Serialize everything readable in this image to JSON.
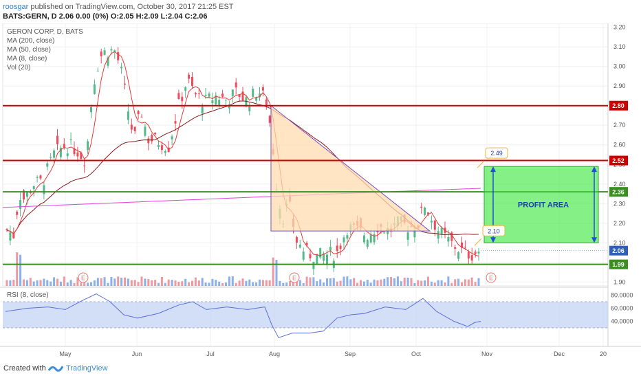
{
  "header": {
    "author": "roosgar",
    "published_text": "published on TradingView.com, October 30, 2017 21:25 EST",
    "symbol_line": "BATS:GERN, D  2.06 0.00 (0%) O:2.05 H:2.09 L:2.04 C:2.06"
  },
  "legend": {
    "title": "GERON CORP, D, BATS",
    "ma200": "MA (200, close)",
    "ma50": "MA (50, close)",
    "ma8": "MA (8, close)",
    "vol": "Vol (20)"
  },
  "rsi_label": "RSI (8, close)",
  "footer": {
    "created": "Created with",
    "brand": "TradingView"
  },
  "colors": {
    "up": "#53b987",
    "down": "#eb4d5c",
    "ma200": "#e040e0",
    "ma50": "#8b1a1a",
    "ma8": "#e53935",
    "level_red": "#cc0000",
    "level_green": "#3a8f20",
    "profit_fill": "#33e633",
    "triangle_fill": "#ffdcb0",
    "triangle_line": "#7a50c0",
    "rsi_band": "#c8d6f5",
    "rsi_line": "#5b6ed8",
    "arrow": "#1f4fd6"
  },
  "chart_data": {
    "type": "candlestick",
    "price_axis_ticks": [
      "3.20",
      "3.10",
      "3.00",
      "2.90",
      "2.80",
      "2.70",
      "2.60",
      "2.50",
      "2.40",
      "2.30",
      "2.20",
      "2.10",
      "2.00",
      "1.90"
    ],
    "ylim": [
      1.88,
      3.22
    ],
    "time_labels": [
      "May",
      "Jun",
      "Jul",
      "Aug",
      "Sep",
      "Oct",
      "Nov",
      "Dec",
      "20"
    ],
    "levels": [
      {
        "value": 2.8,
        "label": "2.80",
        "color": "red"
      },
      {
        "value": 2.52,
        "label": "2.52",
        "color": "red"
      },
      {
        "value": 2.36,
        "label": "2.36",
        "color": "green"
      },
      {
        "value": 1.99,
        "label": "1.99",
        "color": "green"
      }
    ],
    "last_price": {
      "value": 2.06,
      "label": "2.06"
    },
    "annotations": {
      "target_high": "2.49",
      "target_low": "2.10",
      "profit_label": "PROFIT AREA",
      "earnings_marker": "E"
    },
    "rsi": {
      "ticks": [
        "80.0000",
        "60.0000",
        "40.0000"
      ],
      "ylim": [
        10,
        90
      ],
      "band": [
        30,
        70
      ]
    }
  }
}
